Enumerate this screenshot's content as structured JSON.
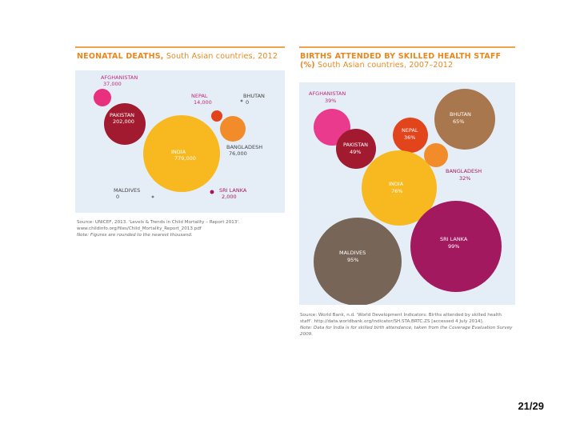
{
  "page_number": "21/29",
  "colors": {
    "accent": "#f2a24a",
    "title": "#e8871e",
    "left_bg": "#e4eef7",
    "right_bg": "#e4eef7"
  },
  "chart_data": [
    {
      "type": "bubble",
      "title_bold": "NEONATAL DEATHS,",
      "title_rest": " South Asian countries, 2012",
      "series": [
        {
          "name": "AFGHANISTAN",
          "label": "37,000",
          "value": 37000,
          "color": "#e8307e"
        },
        {
          "name": "NEPAL",
          "label": "14,000",
          "value": 14000,
          "color": "#e2441c"
        },
        {
          "name": "BHUTAN",
          "label": "0",
          "value": 0,
          "color": "#6b6b6b"
        },
        {
          "name": "PAKISTAN",
          "label": "202,000",
          "value": 202000,
          "color": "#a11a2f"
        },
        {
          "name": "INDIA",
          "label": "779,000",
          "value": 779000,
          "color": "#f7b91f"
        },
        {
          "name": "BANGLADESH",
          "label": "76,000",
          "value": 76000,
          "color": "#f28c2a"
        },
        {
          "name": "MALDIVES",
          "label": "0",
          "value": 0,
          "color": "#6b6b6b"
        },
        {
          "name": "SRI LANKA",
          "label": "2,000",
          "value": 2000,
          "color": "#a3195f"
        }
      ],
      "source": "Source: UNICEF, 2013. 'Levels & Trends in Child Mortality – Report 2013'.",
      "source_url": "www.childinfo.org/files/Child_Mortality_Report_2013.pdf",
      "note": "Note: Figures are rounded to the nearest thousand."
    },
    {
      "type": "bubble",
      "title_bold": "BIRTHS ATTENDED BY SKILLED HEALTH STAFF (%)",
      "title_rest": " South Asian countries, 2007–2012",
      "series": [
        {
          "name": "AFGHANISTAN",
          "label": "39%",
          "value": 39,
          "color": "#ea3a8e"
        },
        {
          "name": "BHUTAN",
          "label": "65%",
          "value": 65,
          "color": "#a8774e"
        },
        {
          "name": "NEPAL",
          "label": "36%",
          "value": 36,
          "color": "#e2441c"
        },
        {
          "name": "PAKISTAN",
          "label": "49%",
          "value": 49,
          "color": "#a11a2f"
        },
        {
          "name": "BANGLADESH",
          "label": "32%",
          "value": 32,
          "color": "#f28c2a"
        },
        {
          "name": "INDIA",
          "label": "76%",
          "value": 76,
          "color": "#f7b91f"
        },
        {
          "name": "SRI LANKA",
          "label": "99%",
          "value": 99,
          "color": "#a3195f"
        },
        {
          "name": "MALDIVES",
          "label": "95%",
          "value": 95,
          "color": "#776557"
        }
      ],
      "source": "Source: World Bank, n.d. 'World Development Indicators: Births attended by skilled health staff'. http://data.worldbank.org/indicator/SH.STA.BRTC.ZS [accessed 4 July 2014].",
      "note": "Note: Data for India is for skilled birth attendance, taken from the Coverage Evaluation Survey 2009."
    }
  ]
}
